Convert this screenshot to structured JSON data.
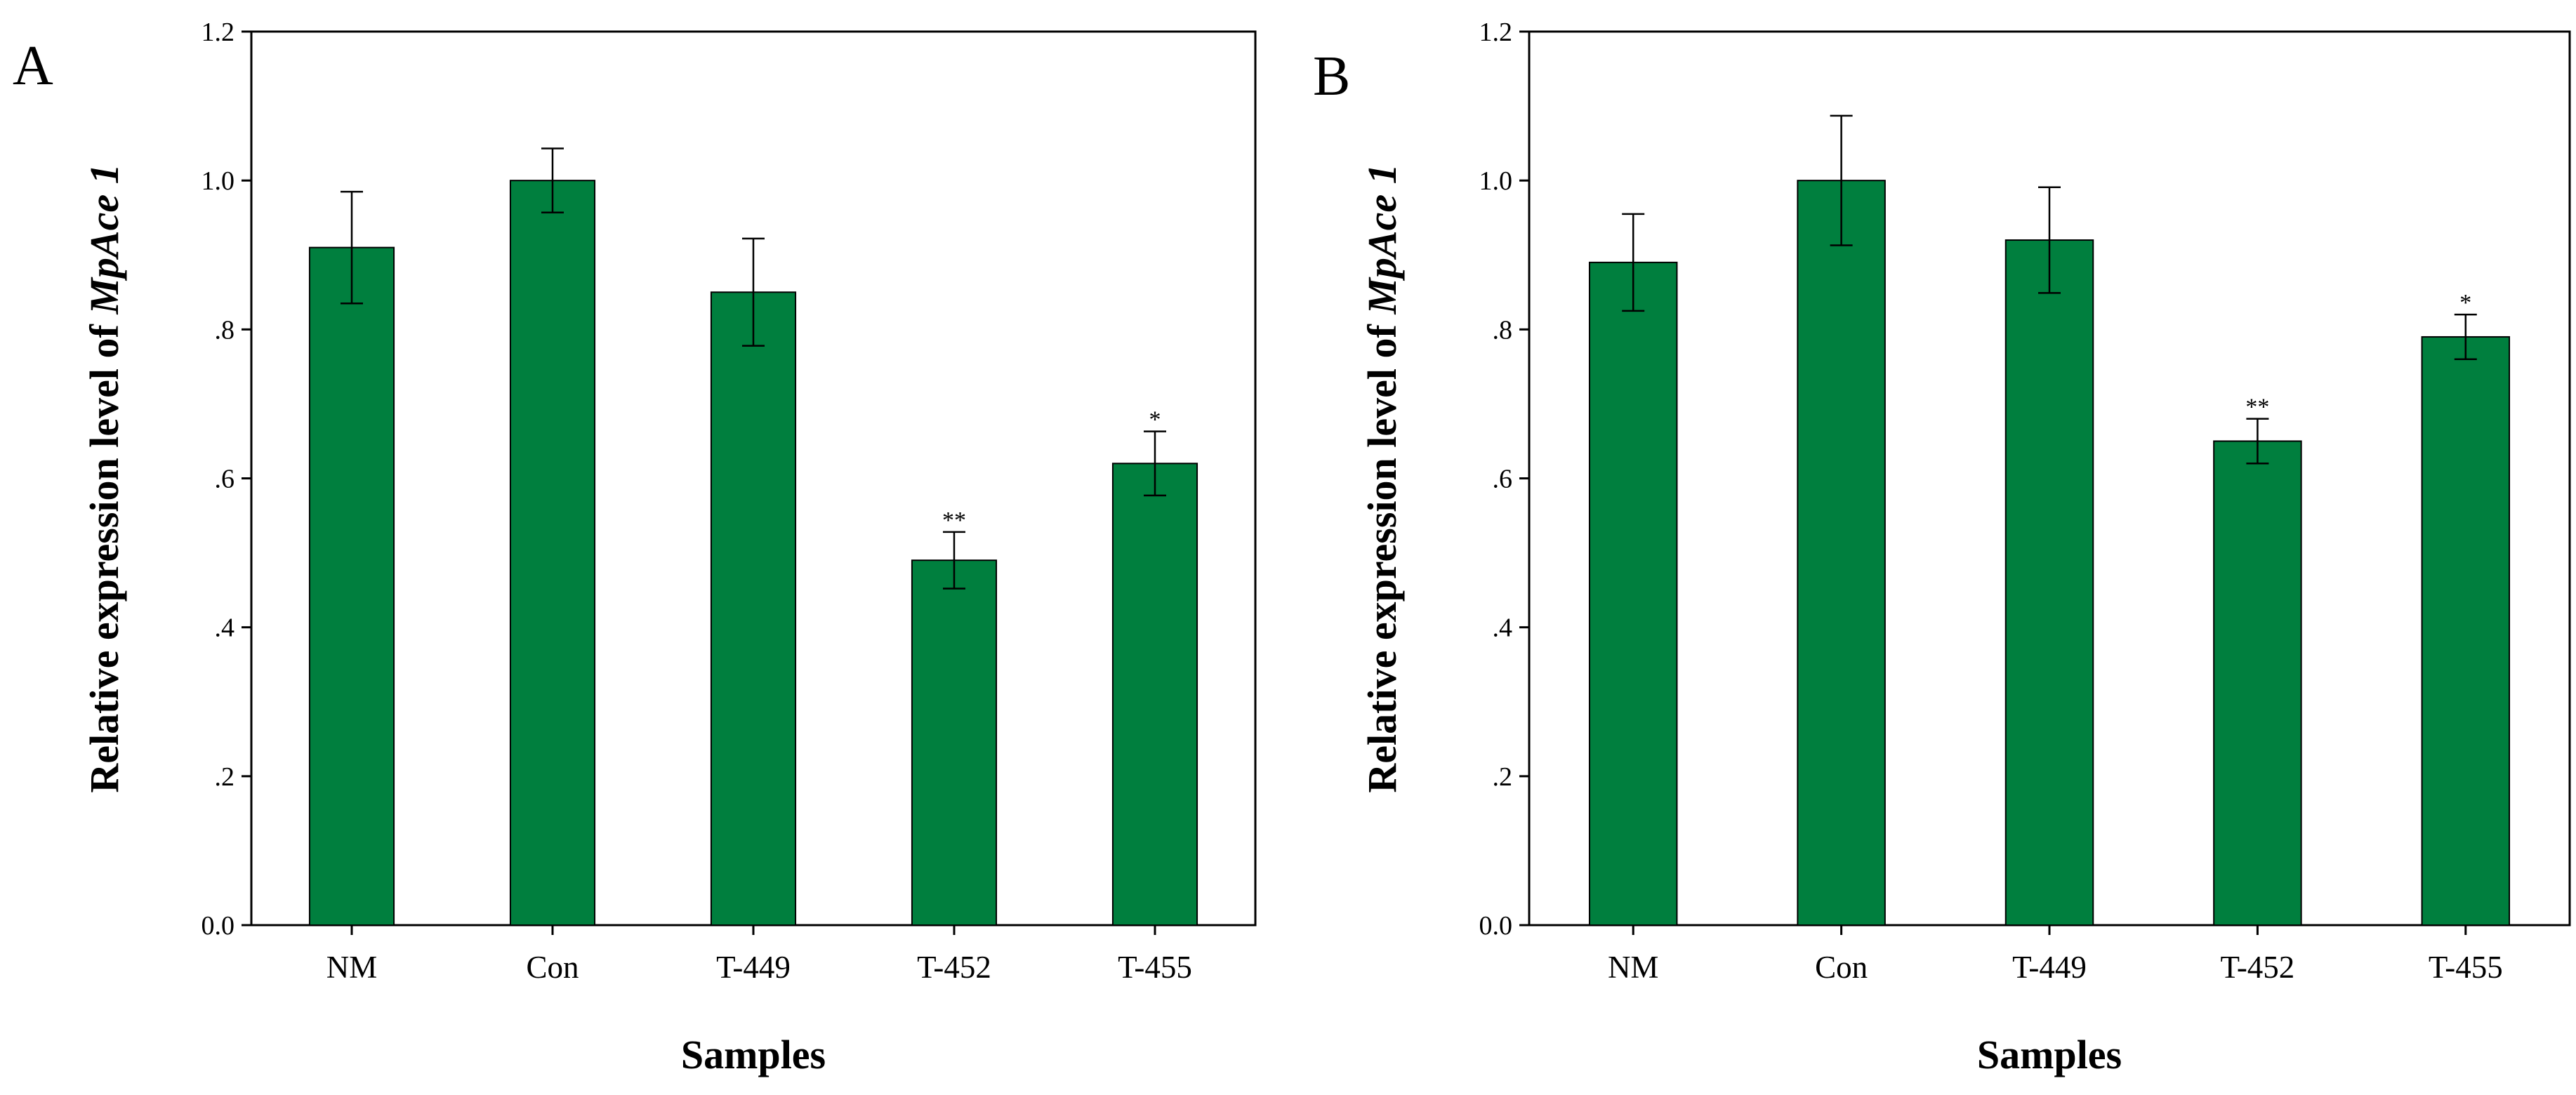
{
  "chart_data": [
    {
      "panel": "A",
      "type": "bar",
      "categories": [
        "NM",
        "Con",
        "T-449",
        "T-452",
        "T-455"
      ],
      "values": [
        0.91,
        1.0,
        0.85,
        0.49,
        0.62
      ],
      "errors": [
        0.075,
        0.043,
        0.072,
        0.038,
        0.043
      ],
      "significance": [
        "",
        "",
        "",
        "**",
        "*"
      ],
      "xlabel": "Samples",
      "ylabel_prefix": "Relative expression level of ",
      "ylabel_italic": "MpAce 1",
      "ylim": [
        0,
        1.2
      ],
      "yticks": [
        0,
        0.2,
        0.4,
        0.6,
        0.8,
        1.0,
        1.2
      ],
      "ytick_labels": [
        "0.0",
        ".2",
        ".4",
        ".6",
        ".8",
        "1.0",
        "1.2"
      ],
      "color": "#007f3e"
    },
    {
      "panel": "B",
      "type": "bar",
      "categories": [
        "NM",
        "Con",
        "T-449",
        "T-452",
        "T-455"
      ],
      "values": [
        0.89,
        1.0,
        0.92,
        0.65,
        0.79
      ],
      "errors": [
        0.065,
        0.087,
        0.071,
        0.03,
        0.03
      ],
      "significance": [
        "",
        "",
        "",
        "**",
        "*"
      ],
      "xlabel": "Samples",
      "ylabel_prefix": "Relative expression level of ",
      "ylabel_italic": "MpAce 1",
      "ylim": [
        0,
        1.2
      ],
      "yticks": [
        0,
        0.2,
        0.4,
        0.6,
        0.8,
        1.0,
        1.2
      ],
      "ytick_labels": [
        "0.0",
        ".2",
        ".4",
        ".6",
        ".8",
        "1.0",
        "1.2"
      ],
      "color": "#007f3e"
    }
  ]
}
